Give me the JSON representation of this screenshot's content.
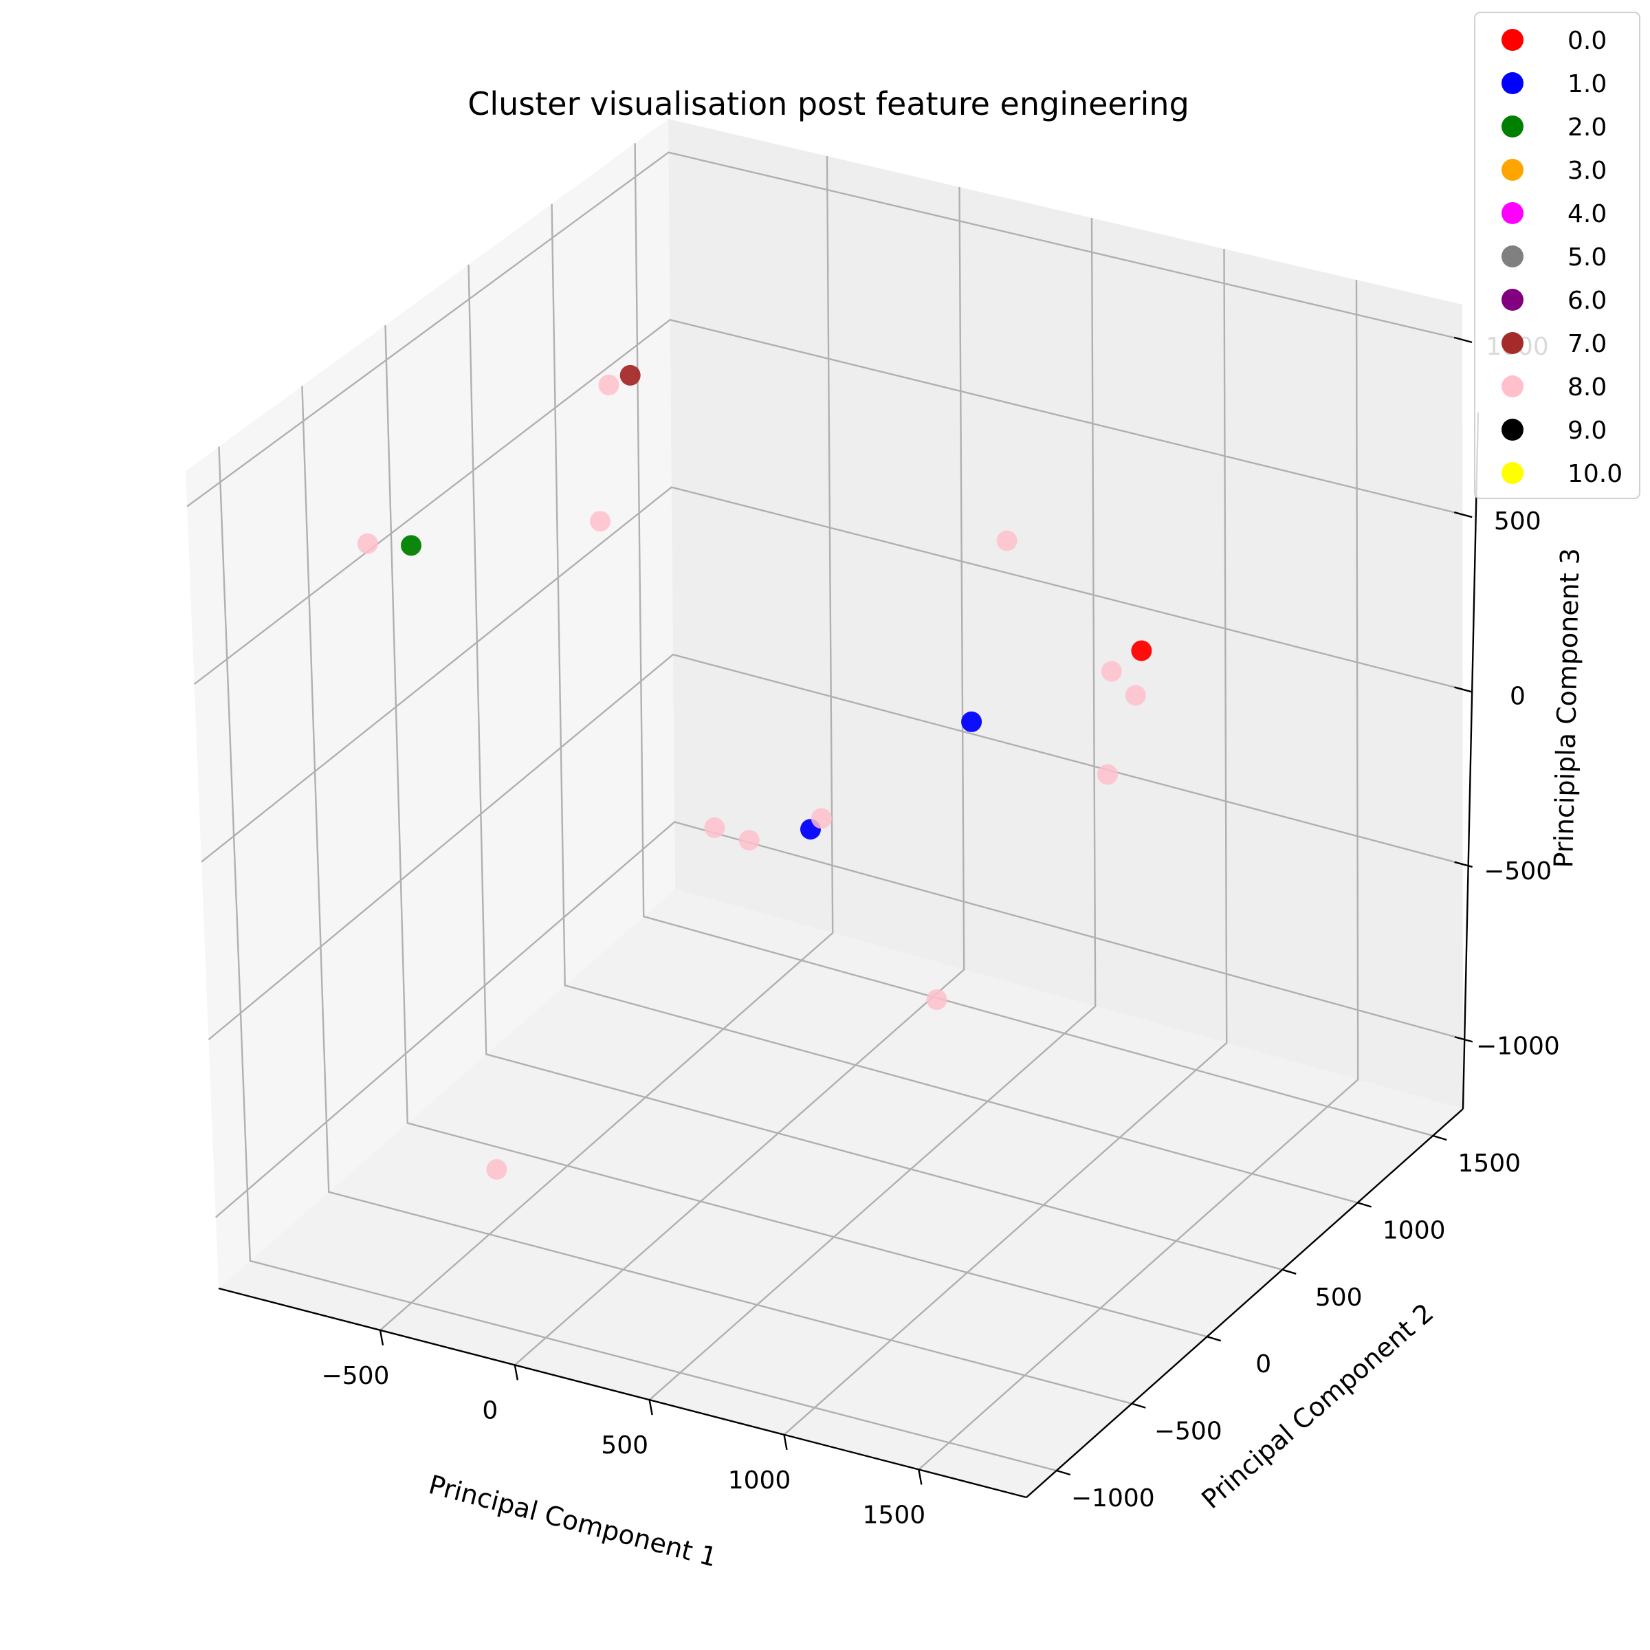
{
  "chart_data": {
    "type": "scatter",
    "projection": "3d",
    "title": "Cluster visualisation post feature engineering",
    "xlabel": "Principal Component 1",
    "ylabel": "Principal Component 2",
    "zlabel": "Principipla Component 3",
    "x_ticks": [
      "−500",
      "0",
      "500",
      "1000",
      "1500"
    ],
    "y_ticks": [
      "−1000",
      "−500",
      "0",
      "500",
      "1000",
      "1500"
    ],
    "z_ticks": [
      "−1000",
      "−500",
      "0",
      "500",
      "1000"
    ],
    "grid": true,
    "legend_position": "top-right",
    "series": [
      {
        "name": "0.0",
        "color": "#ff0000",
        "points": [
          [
            1650,
            100,
            700
          ]
        ]
      },
      {
        "name": "1.0",
        "color": "#0000ff",
        "points": [
          [
            450,
            0,
            -30
          ],
          [
            700,
            600,
            100
          ]
        ]
      },
      {
        "name": "2.0",
        "color": "#008000",
        "points": [
          [
            -900,
            -200,
            580
          ]
        ]
      },
      {
        "name": "3.0",
        "color": "#ffa500",
        "points": []
      },
      {
        "name": "4.0",
        "color": "#ff00ff",
        "points": []
      },
      {
        "name": "5.0",
        "color": "#808080",
        "points": []
      },
      {
        "name": "6.0",
        "color": "#800080",
        "points": []
      },
      {
        "name": "7.0",
        "color": "#a52a2a",
        "points": [
          [
            -500,
            500,
            900
          ]
        ]
      },
      {
        "name": "8.0",
        "color": "#ffc0cb",
        "points": [
          [
            -1000,
            -300,
            600
          ],
          [
            -550,
            450,
            880
          ],
          [
            -500,
            300,
            550
          ],
          [
            600,
            1000,
            450
          ],
          [
            1050,
            900,
            200
          ],
          [
            1200,
            800,
            200
          ],
          [
            1150,
            700,
            0
          ],
          [
            480,
            20,
            0
          ],
          [
            150,
            -100,
            -50
          ],
          [
            230,
            -20,
            -100
          ],
          [
            1000,
            -150,
            -350
          ],
          [
            -100,
            -1100,
            -700
          ]
        ]
      },
      {
        "name": "9.0",
        "color": "#000000",
        "points": []
      },
      {
        "name": "10.0",
        "color": "#ffff00",
        "points": []
      }
    ]
  }
}
